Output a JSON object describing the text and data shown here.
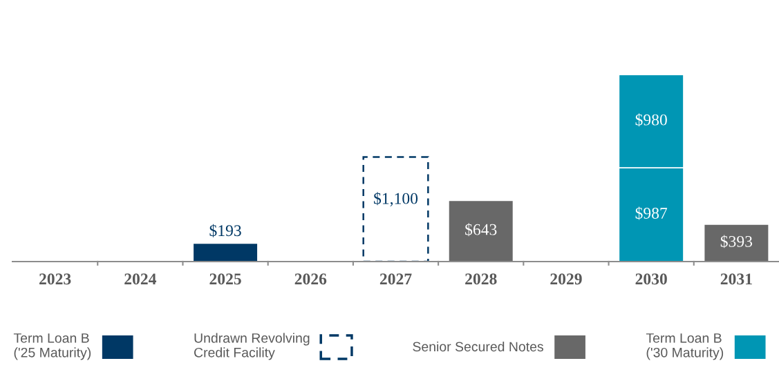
{
  "chart_data": {
    "type": "bar",
    "stacked": true,
    "legend": "bottom",
    "categories": [
      "2023",
      "2024",
      "2025",
      "2026",
      "2027",
      "2028",
      "2029",
      "2030",
      "2031"
    ],
    "series": [
      {
        "name": "Term Loan B\n('25 Maturity)",
        "color": "#003865",
        "values": [
          null,
          null,
          193,
          null,
          null,
          null,
          null,
          null,
          null
        ],
        "value_labels": [
          null,
          null,
          "$193",
          null,
          null,
          null,
          null,
          null,
          null
        ]
      },
      {
        "name": "Undrawn Revolving\nCredit Facility",
        "color": "#003865",
        "line_style": "dashed",
        "values": [
          null,
          null,
          null,
          null,
          1100,
          null,
          null,
          null,
          null
        ],
        "value_labels": [
          null,
          null,
          null,
          null,
          "$1,100",
          null,
          null,
          null,
          null
        ]
      },
      {
        "name": "Senior Secured Notes",
        "color": "#686868",
        "values": [
          null,
          null,
          null,
          null,
          null,
          643,
          null,
          null,
          393
        ],
        "value_labels": [
          null,
          null,
          null,
          null,
          null,
          "$643",
          null,
          null,
          "$393"
        ]
      },
      {
        "name": "Term Loan B\n('30 Maturity)",
        "color": "#0096b4",
        "values": [
          null,
          null,
          null,
          null,
          null,
          null,
          null,
          987,
          null
        ],
        "value_labels": [
          null,
          null,
          null,
          null,
          null,
          null,
          null,
          "$987",
          null
        ]
      },
      {
        "color": "#0096b4",
        "values": [
          null,
          null,
          null,
          null,
          null,
          null,
          null,
          980,
          null
        ],
        "value_labels": [
          null,
          null,
          null,
          null,
          null,
          null,
          null,
          "$980",
          null
        ]
      }
    ]
  }
}
